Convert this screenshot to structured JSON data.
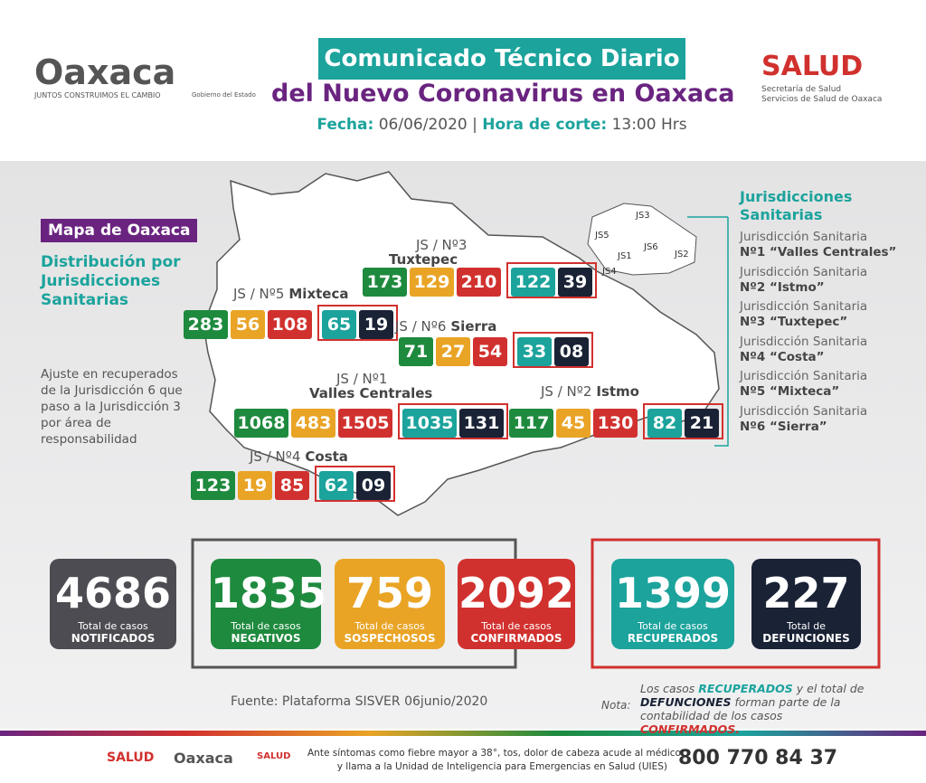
{
  "header": {
    "logo_text": "Oaxaca",
    "logo_tagline": "JUNTOS CONSTRUIMOS EL CAMBIO",
    "gobierno": "Gobierno del Estado",
    "title_line1": "Comunicado Técnico Diario",
    "title_line2": "del Nuevo Coronavirus en Oaxaca",
    "fecha_label": "Fecha:",
    "fecha": "06/06/2020",
    "hora_label": "Hora de corte:",
    "hora": "13:00 Hrs",
    "salud": "SALUD",
    "salud_sub1": "Secretaría de Salud",
    "salud_sub2": "Servicios de Salud de Oaxaca"
  },
  "map": {
    "badge": "Mapa de Oaxaca",
    "subtitle": "Distribución por Jurisdicciones Sanitarias",
    "note": "Ajuste en recuperados de la Jurisdicción 6 que paso a la Jurisdicción 3 por área de responsabilidad",
    "jurisdictions": [
      {
        "code": "JS / Nº3",
        "name": "Tuxtepec",
        "values": [
          173,
          129,
          210,
          122,
          39
        ]
      },
      {
        "code": "JS / Nº5",
        "name": "Mixteca",
        "values": [
          283,
          56,
          108,
          65,
          19
        ]
      },
      {
        "code": "JS / Nº6",
        "name": "Sierra",
        "values": [
          71,
          27,
          54,
          33,
          "08"
        ]
      },
      {
        "code": "JS / Nº1",
        "name": "Valles Centrales",
        "values": [
          1068,
          483,
          1505,
          1035,
          131
        ]
      },
      {
        "code": "JS / Nº2",
        "name": "Istmo",
        "values": [
          117,
          45,
          130,
          82,
          21
        ]
      },
      {
        "code": "JS / Nº4",
        "name": "Costa",
        "values": [
          123,
          19,
          85,
          62,
          "09"
        ]
      }
    ],
    "mini_labels": [
      "JS3",
      "JS5",
      "JS1",
      "JS6",
      "JS2",
      "JS4"
    ]
  },
  "legend": {
    "title": "Jurisdicciones Sanitarias",
    "items": [
      {
        "line1": "Jurisdicción Sanitaria",
        "line2": "Nº1 “Valles Centrales”"
      },
      {
        "line1": "Jurisdicción Sanitaria",
        "line2": "Nº2 “Istmo”"
      },
      {
        "line1": "Jurisdicción Sanitaria",
        "line2": "Nº3 “Tuxtepec”"
      },
      {
        "line1": "Jurisdicción Sanitaria",
        "line2": "Nº4 “Costa”"
      },
      {
        "line1": "Jurisdicción Sanitaria",
        "line2": "Nº5 “Mixteca”"
      },
      {
        "line1": "Jurisdicción Sanitaria",
        "line2": "Nº6 “Sierra”"
      }
    ]
  },
  "totals": [
    {
      "value": 4686,
      "line1": "Total de casos",
      "line2": "NOTIFICADOS"
    },
    {
      "value": 1835,
      "line1": "Total de casos",
      "line2": "NEGATIVOS"
    },
    {
      "value": 759,
      "line1": "Total de casos",
      "line2": "SOSPECHOSOS"
    },
    {
      "value": 2092,
      "line1": "Total de casos",
      "line2": "CONFIRMADOS"
    },
    {
      "value": 1399,
      "line1": "Total de casos",
      "line2": "RECUPERADOS"
    },
    {
      "value": 227,
      "line1": "Total de",
      "line2": "DEFUNCIONES"
    }
  ],
  "footer": {
    "fuente": "Fuente: Plataforma SISVER 06junio/2020",
    "nota_label": "Nota:",
    "nota_parts": [
      "Los casos ",
      "RECUPERADOS",
      " y el total de ",
      "DEFUNCIONES",
      " forman parte de la contabilidad de los casos ",
      "CONFIRMADOS."
    ],
    "bar_salud": "SALUD",
    "bar_oaxaca": "Oaxaca",
    "bar_salud2": "SALUD",
    "message_line1": "Ante síntomas como fiebre mayor a 38°, tos, dolor de cabeza acude al médico",
    "message_line2": "y llama a la Unidad de Inteligencia para Emergencias en Salud (UIES)",
    "phone": "800 770 84 37"
  }
}
